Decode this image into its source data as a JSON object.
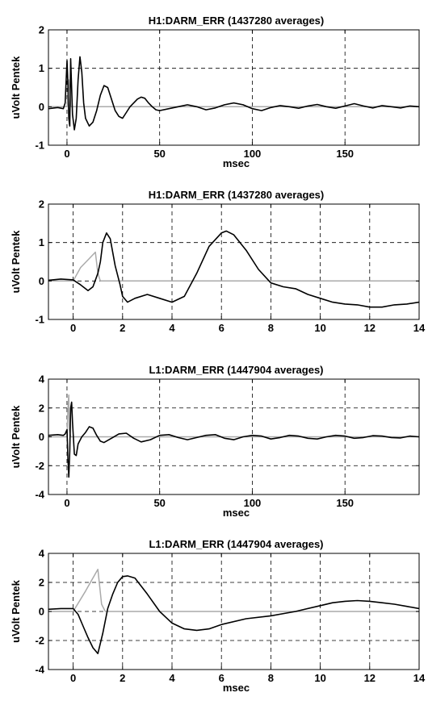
{
  "chart_data": [
    {
      "type": "line",
      "title": "H1:DARM_ERR (1437280 averages)",
      "xlabel": "msec",
      "ylabel": "uVolt Pentek",
      "xlim": [
        -10,
        190
      ],
      "ylim": [
        -1,
        2
      ],
      "xticks": [
        0,
        50,
        100,
        150
      ],
      "yticks": [
        -1,
        0,
        1,
        2
      ],
      "grid": true,
      "series": [
        {
          "color": "#000000",
          "x": [
            -10,
            -5,
            -2,
            -1,
            0,
            0.5,
            1,
            1.5,
            2,
            3,
            4,
            5,
            6,
            7,
            8,
            9,
            10,
            12,
            14,
            16,
            18,
            20,
            22,
            24,
            26,
            28,
            30,
            32,
            34,
            36,
            38,
            40,
            42,
            44,
            46,
            48,
            50,
            55,
            60,
            65,
            70,
            75,
            80,
            85,
            90,
            95,
            100,
            105,
            110,
            115,
            120,
            125,
            130,
            135,
            140,
            145,
            150,
            155,
            160,
            165,
            170,
            175,
            180,
            185,
            190
          ],
          "y": [
            -0.05,
            -0.02,
            -0.05,
            0.1,
            1.2,
            0.6,
            -0.3,
            -0.5,
            1.25,
            -0.2,
            -0.6,
            -0.3,
            0.7,
            1.3,
            0.9,
            0.1,
            -0.3,
            -0.5,
            -0.4,
            -0.1,
            0.3,
            0.55,
            0.5,
            0.2,
            -0.1,
            -0.25,
            -0.3,
            -0.15,
            0.0,
            0.1,
            0.2,
            0.25,
            0.22,
            0.1,
            0.0,
            -0.08,
            -0.1,
            -0.05,
            0.0,
            0.05,
            0.0,
            -0.08,
            -0.03,
            0.05,
            0.1,
            0.05,
            -0.05,
            -0.1,
            -0.02,
            0.03,
            0.0,
            -0.04,
            0.02,
            0.06,
            0.0,
            -0.04,
            0.02,
            0.08,
            0.02,
            -0.03,
            0.03,
            0.0,
            -0.03,
            0.02,
            0.0
          ]
        },
        {
          "color": "#aaaaaa",
          "x": [
            -10,
            0,
            0.5,
            1,
            1.5,
            2,
            5,
            190
          ],
          "y": [
            0.0,
            0.0,
            0.3,
            0.7,
            0.4,
            0.0,
            0.0,
            0.0
          ]
        }
      ]
    },
    {
      "type": "line",
      "title": "H1:DARM_ERR (1437280 averages)",
      "xlabel": "",
      "ylabel": "uVolt Pentek",
      "xlim": [
        -1,
        14
      ],
      "ylim": [
        -1,
        2
      ],
      "xticks": [
        0,
        2,
        4,
        6,
        8,
        10,
        12,
        14
      ],
      "yticks": [
        -1,
        0,
        1,
        2
      ],
      "grid": true,
      "series": [
        {
          "color": "#000000",
          "x": [
            -1,
            -0.5,
            0,
            0.3,
            0.6,
            0.8,
            1.0,
            1.1,
            1.2,
            1.35,
            1.5,
            1.7,
            1.9,
            2.0,
            2.2,
            2.5,
            3.0,
            3.5,
            4.0,
            4.5,
            5.0,
            5.5,
            6.0,
            6.2,
            6.5,
            7.0,
            7.5,
            8.0,
            8.5,
            9.0,
            9.5,
            10.0,
            10.5,
            11.0,
            11.5,
            12.0,
            12.5,
            13.0,
            13.5,
            14.0
          ],
          "y": [
            0.02,
            0.05,
            0.03,
            -0.1,
            -0.25,
            -0.15,
            0.2,
            0.5,
            1.0,
            1.25,
            1.1,
            0.4,
            -0.1,
            -0.4,
            -0.55,
            -0.45,
            -0.35,
            -0.45,
            -0.55,
            -0.4,
            0.2,
            0.9,
            1.25,
            1.3,
            1.2,
            0.8,
            0.3,
            -0.05,
            -0.15,
            -0.2,
            -0.35,
            -0.45,
            -0.55,
            -0.6,
            -0.62,
            -0.68,
            -0.68,
            -0.62,
            -0.6,
            -0.55
          ]
        },
        {
          "color": "#aaaaaa",
          "x": [
            -1,
            0,
            0.3,
            0.6,
            0.9,
            1.0,
            1.1,
            14
          ],
          "y": [
            0.0,
            0.0,
            0.35,
            0.55,
            0.75,
            0.2,
            0.0,
            0.0
          ]
        }
      ]
    },
    {
      "type": "line",
      "title": "L1:DARM_ERR (1447904 averages)",
      "xlabel": "msec",
      "ylabel": "uVolt Pentek",
      "xlim": [
        -10,
        190
      ],
      "ylim": [
        -4,
        4
      ],
      "xticks": [
        0,
        50,
        100,
        150
      ],
      "yticks": [
        -4,
        -2,
        0,
        2,
        4
      ],
      "grid": true,
      "series": [
        {
          "color": "#000000",
          "x": [
            -10,
            -5,
            -2,
            -1,
            0,
            0.5,
            1,
            1.5,
            2,
            2.5,
            3,
            4,
            5,
            6,
            8,
            10,
            12,
            14,
            16,
            18,
            20,
            24,
            28,
            32,
            36,
            40,
            45,
            50,
            55,
            60,
            65,
            70,
            75,
            80,
            85,
            90,
            95,
            100,
            105,
            110,
            115,
            120,
            125,
            130,
            135,
            140,
            145,
            150,
            155,
            160,
            165,
            170,
            175,
            180,
            185,
            190
          ],
          "y": [
            0.1,
            0.15,
            0.1,
            0.2,
            0.5,
            -1.5,
            -2.8,
            -1.0,
            2.0,
            2.4,
            1.0,
            -1.2,
            -1.3,
            -0.5,
            0.0,
            0.3,
            0.7,
            0.6,
            0.1,
            -0.3,
            -0.4,
            -0.1,
            0.2,
            0.25,
            -0.1,
            -0.35,
            -0.2,
            0.1,
            0.15,
            -0.05,
            -0.2,
            -0.05,
            0.1,
            0.15,
            -0.1,
            -0.2,
            0.0,
            0.1,
            0.05,
            -0.15,
            -0.05,
            0.1,
            0.05,
            -0.1,
            -0.15,
            0.0,
            0.1,
            0.05,
            -0.1,
            -0.05,
            0.08,
            0.05,
            -0.05,
            -0.08,
            0.05,
            0.0
          ]
        },
        {
          "color": "#aaaaaa",
          "x": [
            -10,
            0,
            0.5,
            1,
            1.2,
            2,
            190
          ],
          "y": [
            0.0,
            0.0,
            2.0,
            2.9,
            0.5,
            0.0,
            0.0
          ]
        }
      ]
    },
    {
      "type": "line",
      "title": "L1:DARM_ERR (1447904 averages)",
      "xlabel": "msec",
      "ylabel": "uVolt Pentek",
      "xlim": [
        -1,
        14
      ],
      "ylim": [
        -4,
        4
      ],
      "xticks": [
        0,
        2,
        4,
        6,
        8,
        10,
        12,
        14
      ],
      "yticks": [
        -4,
        -2,
        0,
        2,
        4
      ],
      "grid": true,
      "series": [
        {
          "color": "#000000",
          "x": [
            -1,
            -0.5,
            0,
            0.2,
            0.4,
            0.6,
            0.8,
            1.0,
            1.2,
            1.4,
            1.6,
            1.8,
            2.0,
            2.2,
            2.5,
            3.0,
            3.5,
            4.0,
            4.5,
            5.0,
            5.5,
            6.0,
            7.0,
            8.0,
            9.0,
            10.0,
            10.5,
            11.0,
            11.5,
            12.0,
            12.5,
            13.0,
            13.5,
            14.0
          ],
          "y": [
            0.15,
            0.2,
            0.2,
            -0.2,
            -1.0,
            -1.8,
            -2.5,
            -2.9,
            -1.5,
            0.2,
            1.2,
            2.0,
            2.4,
            2.45,
            2.3,
            1.2,
            0.0,
            -0.8,
            -1.2,
            -1.3,
            -1.2,
            -0.9,
            -0.5,
            -0.3,
            0.0,
            0.4,
            0.6,
            0.7,
            0.75,
            0.7,
            0.6,
            0.5,
            0.35,
            0.2
          ]
        },
        {
          "color": "#aaaaaa",
          "x": [
            -1,
            0,
            0.5,
            1.0,
            1.15,
            1.3,
            14
          ],
          "y": [
            0.0,
            0.0,
            1.4,
            2.9,
            0.5,
            0.0,
            0.0
          ]
        }
      ]
    }
  ]
}
